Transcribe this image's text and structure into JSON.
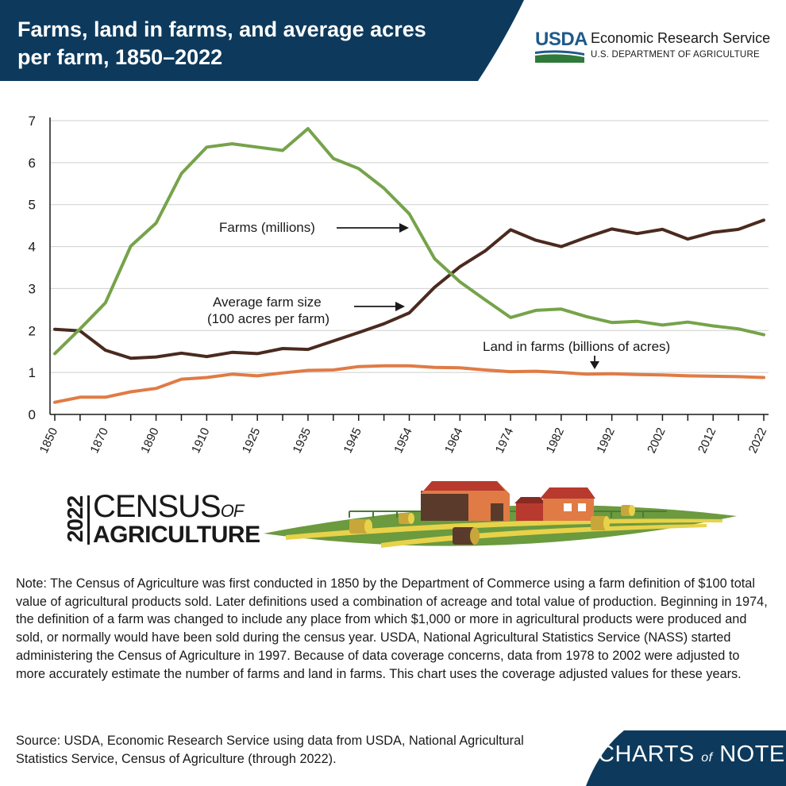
{
  "header": {
    "title": "Farms, land in farms, and average acres per farm, 1850–2022",
    "agency_short": "USDA",
    "agency_name": "Economic Research Service",
    "department": "U.S. DEPARTMENT OF AGRICULTURE",
    "colors": {
      "band": "#0d3a5c",
      "usda_blue": "#1e5a8a",
      "usda_green": "#2f7a3a"
    }
  },
  "chart_data": {
    "type": "line",
    "title": "",
    "xlabel": "",
    "ylabel": "",
    "ylim": [
      0,
      7
    ],
    "yticks": [
      0,
      1,
      2,
      3,
      4,
      5,
      6,
      7
    ],
    "grid": "horizontal",
    "x": [
      1850,
      1860,
      1870,
      1880,
      1890,
      1900,
      1910,
      1920,
      1925,
      1930,
      1935,
      1940,
      1945,
      1950,
      1954,
      1959,
      1964,
      1969,
      1974,
      1978,
      1982,
      1987,
      1992,
      1997,
      2002,
      2007,
      2012,
      2017,
      2022
    ],
    "xtick_labels": [
      "1850",
      "1870",
      "1890",
      "1910",
      "1925",
      "1935",
      "1945",
      "1954",
      "1964",
      "1974",
      "1982",
      "1992",
      "2002",
      "2012",
      "2022"
    ],
    "series": [
      {
        "name": "Farms (millions)",
        "color": "#76a34a",
        "values": [
          1.45,
          2.04,
          2.66,
          4.01,
          4.56,
          5.74,
          6.37,
          6.45,
          6.37,
          6.29,
          6.81,
          6.1,
          5.86,
          5.39,
          4.78,
          3.71,
          3.16,
          2.73,
          2.31,
          2.48,
          2.51,
          2.33,
          2.19,
          2.22,
          2.13,
          2.2,
          2.11,
          2.04,
          1.9
        ]
      },
      {
        "name": "Average farm size (100 acres per farm)",
        "color": "#4a2a1f",
        "values": [
          2.03,
          1.99,
          1.53,
          1.34,
          1.37,
          1.46,
          1.38,
          1.48,
          1.45,
          1.57,
          1.55,
          1.75,
          1.95,
          2.16,
          2.42,
          3.03,
          3.52,
          3.9,
          4.4,
          4.15,
          4.0,
          4.22,
          4.42,
          4.31,
          4.41,
          4.18,
          4.34,
          4.41,
          4.63
        ]
      },
      {
        "name": "Land in farms (billions of acres)",
        "color": "#e07b45",
        "values": [
          0.29,
          0.41,
          0.41,
          0.54,
          0.62,
          0.84,
          0.88,
          0.96,
          0.92,
          0.99,
          1.05,
          1.06,
          1.14,
          1.16,
          1.16,
          1.12,
          1.11,
          1.06,
          1.02,
          1.03,
          1.0,
          0.96,
          0.97,
          0.95,
          0.94,
          0.92,
          0.91,
          0.9,
          0.88
        ]
      }
    ]
  },
  "census": {
    "year": "2022",
    "word": "CENSUS",
    "of": "OF",
    "ag": "AGRICULTURE"
  },
  "notes": {
    "note": "Note: The Census of Agriculture was first conducted in 1850 by the Department of Commerce using a farm definition of $100 total value of agricultural products sold. Later definitions used a combination of acreage and total value of production. Beginning in 1974, the definition of a farm was changed to include any place from which $1,000 or more in agricultural products were produced and sold, or normally would have been sold during the census year. USDA, National Agricultural Statistics Service (NASS) started administering the Census of Agriculture in 1997. Because of data coverage concerns, data from 1978 to 2002 were adjusted to more accurately estimate the number of farms and land in farms. This chart uses the coverage adjusted values for these years.",
    "source": "Source: USDA, Economic Research Service using data from USDA, National Agricultural Statistics Service, Census of Agriculture (through 2022)."
  },
  "footer": {
    "brand_left": "CHARTS",
    "brand_of": "of",
    "brand_right": "NOTE"
  }
}
